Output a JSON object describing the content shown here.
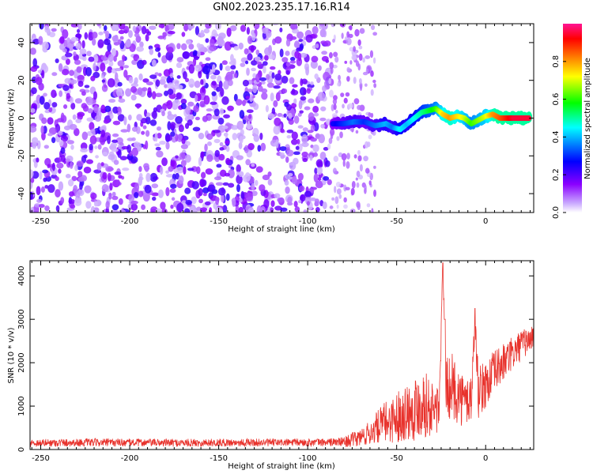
{
  "title": "GN02.2023.235.17.16.R14",
  "chart_data": [
    {
      "type": "heatmap",
      "xlabel": "Height of straight line (km)",
      "ylabel": "Frequency (Hz)",
      "xlim": [
        -256,
        27
      ],
      "ylim": [
        -50,
        50
      ],
      "xticks": [
        -250,
        -200,
        -150,
        -100,
        -50,
        0
      ],
      "yticks": [
        -40,
        -20,
        0,
        20,
        40
      ],
      "noise_region_x": [
        -256,
        -88
      ],
      "sparse_noise_region_x": [
        -88,
        -62
      ],
      "signal_track": {
        "x": [
          -86,
          -80,
          -74,
          -68,
          -62,
          -56,
          -52,
          -48,
          -44,
          -40,
          -36,
          -32,
          -28,
          -24,
          -20,
          -16,
          -12,
          -8,
          -4,
          0,
          4,
          8,
          12,
          16,
          20,
          25
        ],
        "y": [
          -3,
          -3,
          -2,
          -2,
          -4,
          -3,
          -5,
          -6,
          -3,
          0,
          3,
          4,
          5,
          2,
          0,
          1,
          0,
          -3,
          -1,
          1,
          2,
          0,
          0,
          0,
          0,
          0
        ],
        "amplitude": [
          0.25,
          0.3,
          0.35,
          0.3,
          0.35,
          0.4,
          0.35,
          0.45,
          0.4,
          0.45,
          0.5,
          0.55,
          0.6,
          0.75,
          0.8,
          0.75,
          0.7,
          0.6,
          0.65,
          0.7,
          0.8,
          0.85,
          0.9,
          0.95,
          0.95,
          0.95
        ]
      },
      "colorbar": {
        "label": "Normalized spectral amplitude",
        "range": [
          0,
          1
        ],
        "ticks": [
          "0.0",
          "0.2",
          "0.4",
          "0.6",
          "0.8"
        ],
        "colors": [
          "#ffffff",
          "#8a00ff",
          "#0000ff",
          "#00ffff",
          "#00ff00",
          "#ffff00",
          "#ff8000",
          "#ff0000",
          "#ff1493"
        ]
      }
    },
    {
      "type": "line",
      "xlabel": "Height of straight line (km)",
      "ylabel": "SNR (10 * v/v)",
      "xlim": [
        -256,
        27
      ],
      "ylim": [
        0,
        4350
      ],
      "xticks": [
        -250,
        -200,
        -150,
        -100,
        -50,
        0
      ],
      "yticks": [
        0,
        1000,
        2000,
        3000,
        4000
      ],
      "color": "#e8322c",
      "series": [
        {
          "x": [
            -256,
            -230,
            -200,
            -170,
            -140,
            -110,
            -90,
            -80,
            -72,
            -65,
            -58,
            -52,
            -46,
            -40,
            -35,
            -30,
            -26,
            -24,
            -22,
            -20,
            -16,
            -12,
            -8,
            -6,
            -4,
            0,
            5,
            10,
            15,
            20,
            27
          ],
          "y": [
            150,
            160,
            160,
            155,
            160,
            160,
            165,
            175,
            250,
            380,
            600,
            700,
            850,
            950,
            1100,
            900,
            1000,
            4300,
            1300,
            1500,
            1300,
            1100,
            1200,
            3000,
            1300,
            1500,
            1800,
            2000,
            2200,
            2400,
            2600
          ],
          "spread": [
            90,
            90,
            90,
            90,
            90,
            90,
            90,
            110,
            200,
            280,
            450,
            550,
            650,
            750,
            800,
            650,
            650,
            200,
            750,
            800,
            700,
            600,
            650,
            200,
            600,
            550,
            500,
            450,
            400,
            350,
            300
          ]
        }
      ]
    }
  ]
}
